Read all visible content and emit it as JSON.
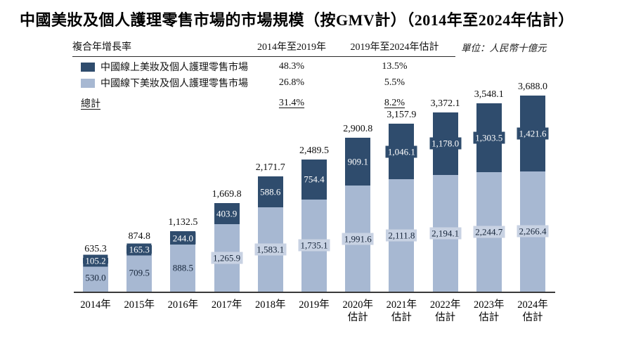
{
  "title": "中國美妝及個人護理零售市場的市場規模（按GMV計）（2014年至2024年估計）",
  "unit_label": "單位：人民幣十億元",
  "cagr_table": {
    "header": {
      "label": "複合年增長率",
      "col1": "2014年至2019年",
      "col2": "2019年至2024年估計"
    },
    "rows": [
      {
        "col1": "48.3%",
        "col2": "13.5%"
      },
      {
        "col1": "26.8%",
        "col2": "5.5%"
      }
    ],
    "total_row": {
      "label": "總計",
      "col1": "31.4%",
      "col2": "8.2%"
    }
  },
  "colors": {
    "online_dark_blue": "#2F4C6D",
    "offline_light_blue": "#A7B8D2",
    "offline_label_box": "#C8D2E3",
    "value_text_dark": "#16253A"
  },
  "chart_data": {
    "type": "bar",
    "stacked": true,
    "title": "中國美妝及個人護理零售市場的市場規模（按GMV計）（2014年至2024年估計）",
    "ylabel": "人民幣十億元",
    "ylim": [
      0,
      3688
    ],
    "grid": false,
    "legend_position": "top-left",
    "categories": [
      {
        "label": "2014年",
        "sublabel": ""
      },
      {
        "label": "2015年",
        "sublabel": ""
      },
      {
        "label": "2016年",
        "sublabel": ""
      },
      {
        "label": "2017年",
        "sublabel": ""
      },
      {
        "label": "2018年",
        "sublabel": ""
      },
      {
        "label": "2019年",
        "sublabel": ""
      },
      {
        "label": "2020年",
        "sublabel": "估計"
      },
      {
        "label": "2021年",
        "sublabel": "估計"
      },
      {
        "label": "2022年",
        "sublabel": "估計"
      },
      {
        "label": "2023年",
        "sublabel": "估計"
      },
      {
        "label": "2024年",
        "sublabel": "估計"
      }
    ],
    "series": [
      {
        "name": "中國線上美妝及個人護理零售市場",
        "color": "#2F4C6D",
        "values": [
          105.2,
          165.3,
          244.0,
          403.9,
          588.6,
          754.4,
          909.1,
          1046.1,
          1178.0,
          1303.5,
          1421.6
        ],
        "labels": [
          "105.2",
          "165.3",
          "244.0",
          "403.9",
          "588.6",
          "754.4",
          "909.1",
          "1,046.1",
          "1,178.0",
          "1,303.5",
          "1,421.6"
        ]
      },
      {
        "name": "中國線下美妝及個人護理零售市場",
        "color": "#A7B8D2",
        "values": [
          530.0,
          709.5,
          888.5,
          1265.9,
          1583.1,
          1735.1,
          1991.6,
          2111.8,
          2194.1,
          2244.7,
          2266.4
        ],
        "labels": [
          "530.0",
          "709.5",
          "888.5",
          "1,265.9",
          "1,583.1",
          "1,735.1",
          "1,991.6",
          "2,111.8",
          "2,194.1",
          "2,244.7",
          "2,266.4"
        ]
      }
    ],
    "totals": {
      "values": [
        635.3,
        874.8,
        1132.5,
        1669.8,
        2171.7,
        2489.5,
        2900.8,
        3157.9,
        3372.1,
        3548.1,
        3688.0
      ],
      "labels": [
        "635.3",
        "874.8",
        "1,132.5",
        "1,669.8",
        "2,171.7",
        "2,489.5",
        "2,900.8",
        "3,157.9",
        "3,372.1",
        "3,548.1",
        "3,688.0"
      ]
    }
  }
}
